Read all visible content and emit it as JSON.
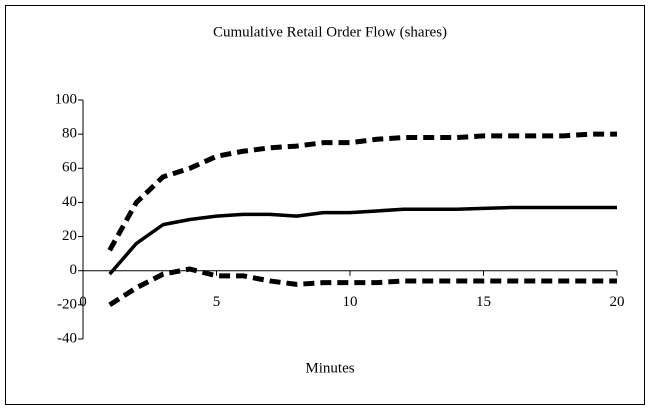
{
  "chart_data": {
    "type": "line",
    "title": "Cumulative Retail Order Flow (shares)",
    "x_label": "Minutes",
    "x": [
      1,
      2,
      3,
      4,
      5,
      6,
      7,
      8,
      9,
      10,
      11,
      12,
      13,
      14,
      15,
      16,
      17,
      18,
      19,
      20
    ],
    "series": [
      {
        "color": "#000000",
        "dashed": true,
        "values": [
          12,
          40,
          55,
          60,
          67,
          70,
          72,
          73,
          75,
          75,
          77,
          78,
          78,
          78,
          79,
          79,
          79,
          79,
          80,
          80
        ]
      },
      {
        "color": "#000000",
        "dashed": false,
        "values": [
          -2,
          16,
          27,
          30,
          32,
          33,
          33,
          32,
          34,
          34,
          35,
          36,
          36,
          36,
          36.5,
          37,
          37,
          37,
          37,
          37
        ]
      },
      {
        "color": "#000000",
        "dashed": true,
        "values": [
          -20,
          -10,
          -2,
          1,
          -3,
          -3,
          -6,
          -8,
          -7,
          -7,
          -7,
          -6,
          -6,
          -6,
          -6,
          -6,
          -6,
          -6,
          -6,
          -6
        ]
      }
    ],
    "xlim": [
      0,
      20
    ],
    "xticks": [
      0,
      5,
      10,
      15,
      20
    ],
    "ylim": [
      -40,
      100
    ],
    "yticks": [
      100,
      80,
      60,
      40,
      20,
      0,
      -20,
      -40
    ]
  }
}
